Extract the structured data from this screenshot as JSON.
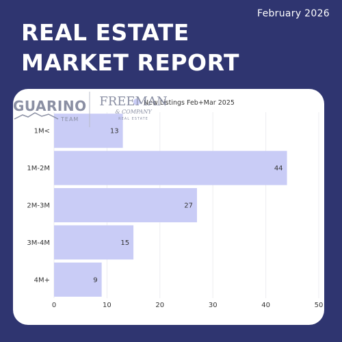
{
  "header": {
    "date": "February 2026",
    "title_line1": "REAL ESTATE",
    "title_line2": "MARKET REPORT"
  },
  "logos": {
    "guarino": "GUARINO",
    "guarino_sub": "TEAM",
    "freeman": "FREEMAN",
    "freeman_sub": "& COMPANY",
    "freeman_tag": "REAL ESTATE"
  },
  "colors": {
    "background": "#2f3570",
    "bar": "#c9ccf6",
    "legend_dot": "#c9ccf6",
    "text": "#333333",
    "logo_gray": "#8a8fa3"
  },
  "chart_data": {
    "type": "bar",
    "orientation": "horizontal",
    "categories": [
      "1M<",
      "1M-2M",
      "2M-3M",
      "3M-4M",
      "4M+"
    ],
    "series": [
      {
        "name": "New Listings Feb+Mar 2025",
        "values": [
          13,
          44,
          27,
          15,
          9
        ]
      }
    ],
    "xlim": [
      0,
      50
    ],
    "xticks": [
      0,
      10,
      20,
      30,
      40,
      50
    ],
    "grid": true,
    "legend": "top-center",
    "data_labels": true
  }
}
